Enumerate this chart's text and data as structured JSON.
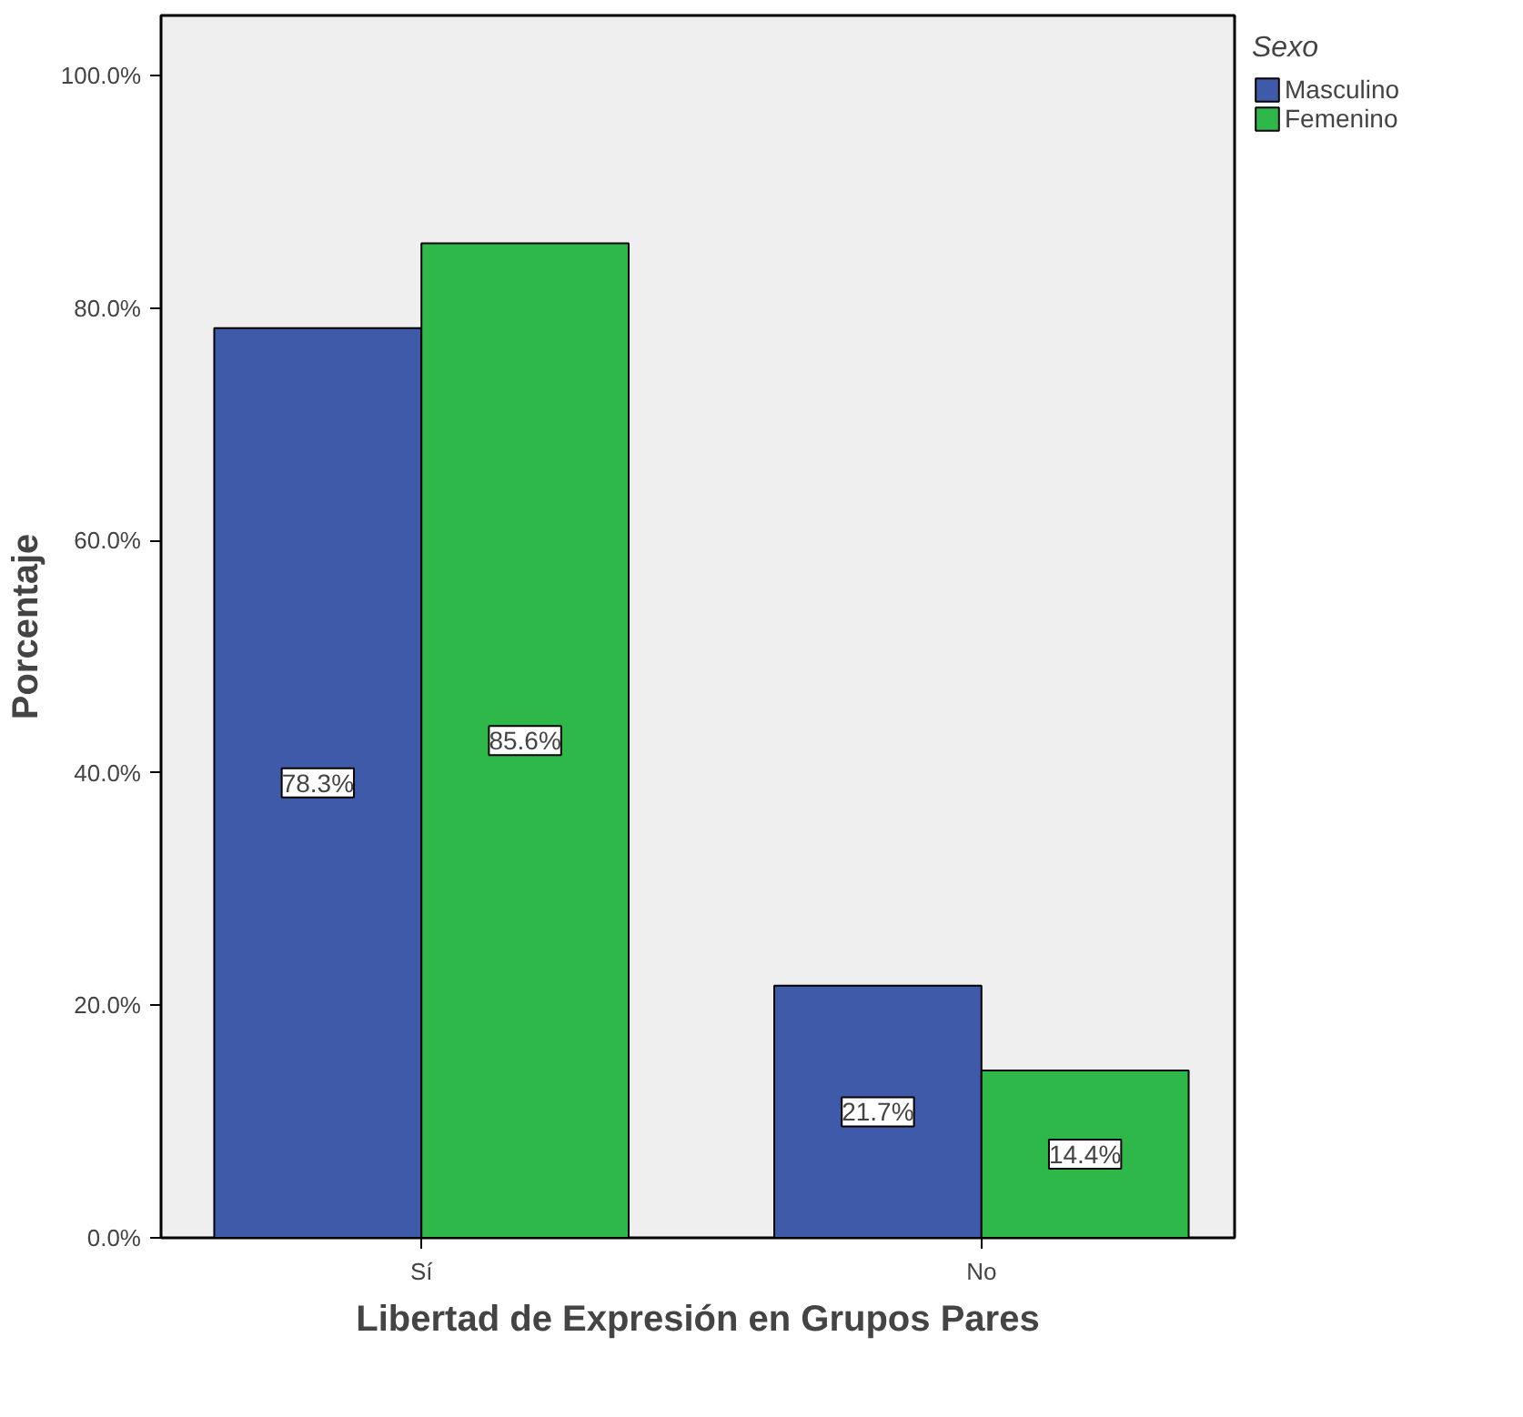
{
  "chart_data": {
    "type": "bar",
    "xlabel": "Libertad de Expresión en Grupos Pares",
    "ylabel": "Porcentaje",
    "legend_title": "Sexo",
    "legend": "top right",
    "categories": [
      "Sí",
      "No"
    ],
    "series": [
      {
        "name": "Masculino",
        "color": "#3f5aa8",
        "values": [
          78.3,
          21.7
        ],
        "value_labels": [
          "78.3%",
          "21.7%"
        ]
      },
      {
        "name": "Femenino",
        "color": "#2eb84a",
        "values": [
          85.6,
          14.4
        ],
        "value_labels": [
          "85.6%",
          "14.4%"
        ]
      }
    ],
    "ylim": [
      0,
      105.2
    ],
    "yticks": [
      {
        "value": 0,
        "label": "0.0%"
      },
      {
        "value": 20,
        "label": "20.0%"
      },
      {
        "value": 40,
        "label": "40.0%"
      },
      {
        "value": 60,
        "label": "60.0%"
      },
      {
        "value": 80,
        "label": "80.0%"
      },
      {
        "value": 100,
        "label": "100.0%"
      }
    ],
    "grid": false
  }
}
